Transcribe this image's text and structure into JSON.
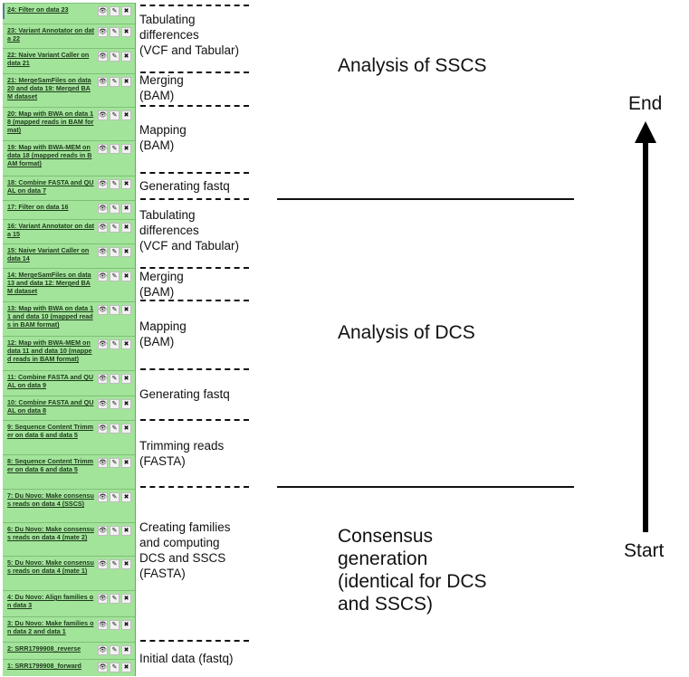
{
  "history": {
    "items": [
      {
        "id": "24",
        "title": "24: Filter on data 23"
      },
      {
        "id": "23",
        "title": "23: Variant Annotator on data 22"
      },
      {
        "id": "22",
        "title": "22: Naive Variant Caller on data 21"
      },
      {
        "id": "21",
        "title": "21: MergeSamFiles on data 20 and data 19: Merged BAM dataset"
      },
      {
        "id": "20",
        "title": "20: Map with BWA on data 18 (mapped reads in BAM format)"
      },
      {
        "id": "19",
        "title": "19: Map with BWA-MEM on data 18 (mapped reads in BAM format)"
      },
      {
        "id": "18",
        "title": "18: Combine FASTA and QUAL on data 7"
      },
      {
        "id": "17",
        "title": "17: Filter on data 16"
      },
      {
        "id": "16",
        "title": "16: Variant Annotator on data 15"
      },
      {
        "id": "15",
        "title": "15: Naive Variant Caller on data 14"
      },
      {
        "id": "14",
        "title": "14: MergeSamFiles on data 13 and data 12: Merged BAM dataset"
      },
      {
        "id": "13",
        "title": "13: Map with BWA on data 11 and data 10 (mapped reads in BAM format)"
      },
      {
        "id": "12",
        "title": "12: Map with BWA-MEM on data 11 and data 10 (mapped reads in BAM format)"
      },
      {
        "id": "11",
        "title": "11: Combine FASTA and QUAL on data 9"
      },
      {
        "id": "10",
        "title": "10: Combine FASTA and QUAL on data 8"
      },
      {
        "id": "9",
        "title": "9: Sequence Content Trimmer on data 6 and data 5"
      },
      {
        "id": "8",
        "title": "8: Sequence Content Trimmer on data 6 and data 5"
      },
      {
        "id": "7",
        "title": "7: Du Novo: Make consensus reads on data 4 (SSCS)"
      },
      {
        "id": "6",
        "title": "6: Du Novo: Make consensus reads on data 4 (mate 2)"
      },
      {
        "id": "5",
        "title": "5: Du Novo: Make consensus reads on data 4 (mate 1)"
      },
      {
        "id": "4",
        "title": "4: Du Novo: Align families on data 3"
      },
      {
        "id": "3",
        "title": "3: Du Novo: Make families on data 2 and data 1"
      },
      {
        "id": "2",
        "title": "2: SRR1799908_reverse"
      },
      {
        "id": "1",
        "title": "1: SRR1799908_forward"
      }
    ],
    "icons": {
      "view": "eye-icon",
      "edit": "pencil-icon",
      "delete": "close-icon"
    },
    "icon_glyphs": {
      "view": "👁",
      "edit": "✎",
      "delete": "✖"
    },
    "background_color": "#a3e49b"
  },
  "steps": [
    {
      "key": "tab1",
      "text": "Tabulating\ndifferences\n(VCF and Tabular)"
    },
    {
      "key": "merge1",
      "text": "Merging\n(BAM)"
    },
    {
      "key": "map1",
      "text": "Mapping\n(BAM)"
    },
    {
      "key": "fastq1",
      "text": "Generating fastq"
    },
    {
      "key": "tab2",
      "text": "Tabulating\ndifferences\n(VCF and Tabular)"
    },
    {
      "key": "merge2",
      "text": "Merging\n(BAM)"
    },
    {
      "key": "map2",
      "text": "Mapping\n(BAM)"
    },
    {
      "key": "fastq2",
      "text": "Generating fastq"
    },
    {
      "key": "trim",
      "text": "Trimming reads\n(FASTA)"
    },
    {
      "key": "families",
      "text": "Creating families\nand computing\nDCS and SSCS\n(FASTA)"
    },
    {
      "key": "initial",
      "text": "Initial data (fastq)"
    }
  ],
  "sections": {
    "sscs": "Analysis of SSCS",
    "dcs": "Analysis of DCS",
    "consensus": "Consensus\ngeneration\n(identical for DCS\nand SSCS)"
  },
  "axis": {
    "end": "End",
    "start": "Start"
  }
}
